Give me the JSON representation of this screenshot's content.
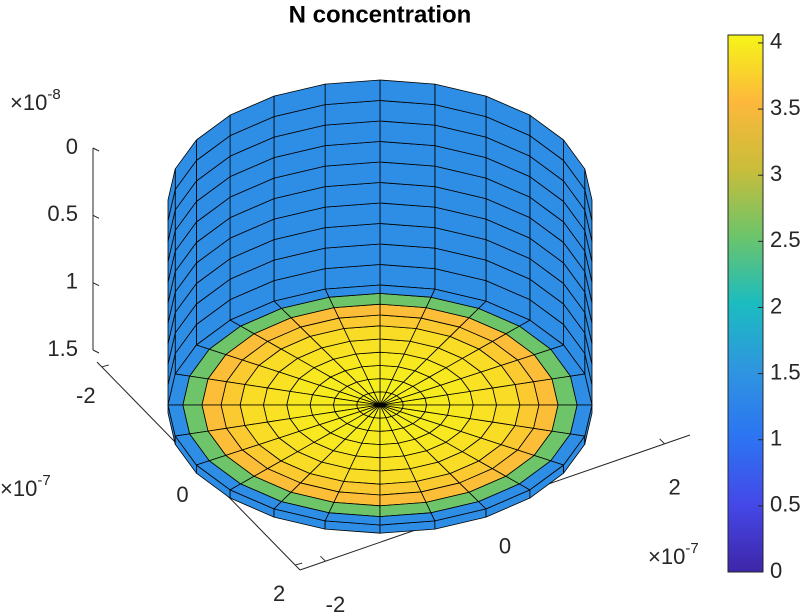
{
  "chart_data": {
    "type": "surface3d",
    "title": "N concentration",
    "ring_values": [
      4.02,
      4.0,
      3.98,
      3.95,
      3.9,
      3.85,
      3.7,
      3.6,
      2.55,
      1.4
    ],
    "wall_value": 1.4,
    "xlim": [
      -2.1,
      2.1
    ],
    "xticks": [
      -2,
      0,
      2
    ],
    "ylim": [
      -2.3,
      2.3
    ],
    "yticks": [
      -2,
      0,
      2
    ],
    "zlim": [
      0,
      1.5
    ],
    "zticks": [
      0,
      0.5,
      1,
      1.5
    ],
    "x_exponent": {
      "base": "×10",
      "power": "-7"
    },
    "y_exponent": {
      "base": "×10",
      "power": "-7"
    },
    "z_exponent": {
      "base": "×10",
      "power": "-8"
    },
    "clim": [
      0,
      4.06
    ],
    "cticks": [
      0,
      0.5,
      1,
      1.5,
      2,
      2.5,
      3,
      3.5,
      4
    ]
  }
}
